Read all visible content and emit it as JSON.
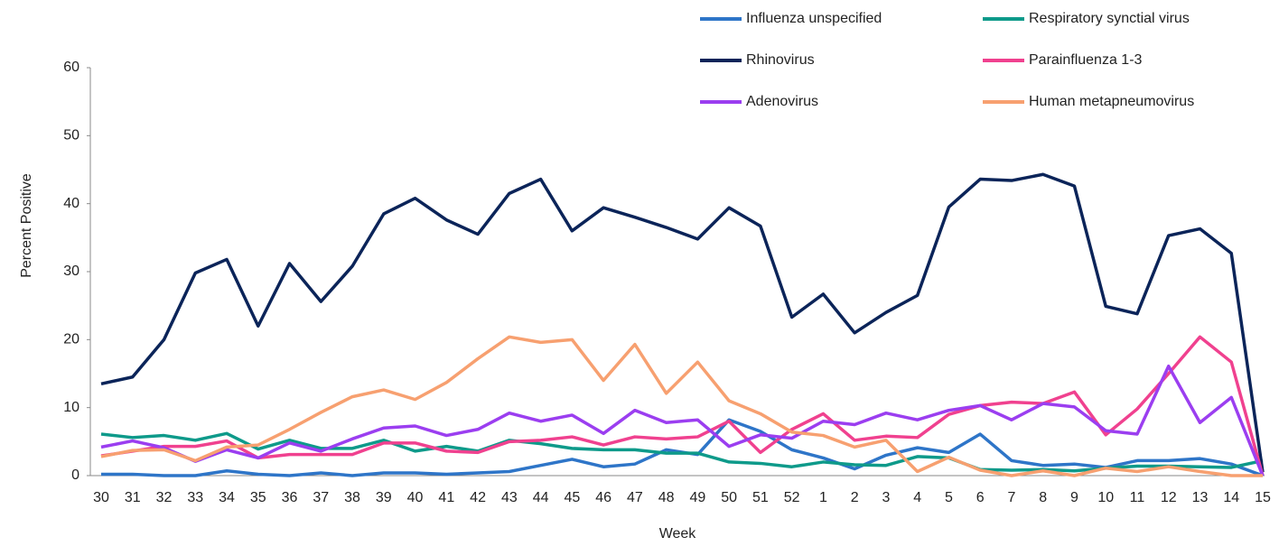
{
  "chart_data": {
    "type": "line",
    "x_label": "Week",
    "y_label": "Percent Positive",
    "categories": [
      "30",
      "31",
      "32",
      "33",
      "34",
      "35",
      "36",
      "37",
      "38",
      "39",
      "40",
      "41",
      "42",
      "43",
      "44",
      "45",
      "46",
      "47",
      "48",
      "49",
      "50",
      "51",
      "52",
      "1",
      "2",
      "3",
      "4",
      "5",
      "6",
      "7",
      "8",
      "9",
      "10",
      "11",
      "12",
      "13",
      "14",
      "15"
    ],
    "ylim": [
      0,
      60
    ],
    "yticks": [
      0,
      10,
      20,
      30,
      40,
      50,
      60
    ],
    "grid": false,
    "series": [
      {
        "name": "Influenza unspecified",
        "color": "#2e75c8",
        "values": [
          0.2,
          0.2,
          0,
          0,
          0.7,
          0.2,
          0,
          0.4,
          0,
          0.4,
          0.4,
          0.2,
          0.4,
          0.6,
          1.5,
          2.4,
          1.3,
          1.7,
          3.8,
          3.1,
          8.2,
          6.5,
          3.8,
          2.6,
          1,
          3,
          4.1,
          3.4,
          6.1,
          2.2,
          1.5,
          1.7,
          1.2,
          2.2,
          2.2,
          2.5,
          1.7,
          0
        ]
      },
      {
        "name": "Respiratory synctial virus",
        "color": "#0e9a8a",
        "values": [
          6.1,
          5.6,
          5.9,
          5.2,
          6.2,
          3.9,
          5.2,
          4,
          4,
          5.2,
          3.6,
          4.3,
          3.6,
          5.2,
          4.7,
          4,
          3.8,
          3.8,
          3.3,
          3.3,
          2,
          1.8,
          1.3,
          2,
          1.6,
          1.5,
          2.8,
          2.6,
          0.9,
          0.8,
          0.9,
          0.7,
          1.1,
          1.4,
          1.4,
          1.3,
          1.2,
          2.2
        ]
      },
      {
        "name": "Rhinovirus",
        "color": "#0b2459",
        "values": [
          13.5,
          14.5,
          20,
          29.8,
          31.8,
          22,
          31.2,
          25.6,
          30.8,
          38.5,
          40.8,
          37.6,
          35.5,
          41.5,
          43.6,
          36,
          39.4,
          38,
          36.5,
          34.8,
          39.4,
          36.7,
          23.3,
          26.7,
          21,
          24,
          26.5,
          39.5,
          43.6,
          43.4,
          44.3,
          42.6,
          24.9,
          23.8,
          35.3,
          36.3,
          32.7,
          0.5
        ]
      },
      {
        "name": "Parainfluenza 1-3",
        "color": "#f0418f",
        "values": [
          2.9,
          3.6,
          4.3,
          4.3,
          5.1,
          2.6,
          3.1,
          3.1,
          3.1,
          4.8,
          4.8,
          3.6,
          3.4,
          5,
          5.2,
          5.7,
          4.5,
          5.7,
          5.4,
          5.7,
          8,
          3.4,
          6.8,
          9.1,
          5.2,
          5.8,
          5.6,
          9,
          10.3,
          10.8,
          10.6,
          12.3,
          6,
          9.8,
          15,
          20.4,
          16.7,
          0
        ]
      },
      {
        "name": "Adenovirus",
        "color": "#9b3ef0",
        "values": [
          4.2,
          5.1,
          4.1,
          2.1,
          3.8,
          2.6,
          4.8,
          3.6,
          5.4,
          7,
          7.3,
          5.9,
          6.8,
          9.2,
          8,
          8.9,
          6.2,
          9.6,
          7.8,
          8.2,
          4.3,
          6,
          5.5,
          8,
          7.5,
          9.2,
          8.2,
          9.6,
          10.3,
          8.2,
          10.6,
          10.1,
          6.6,
          6.1,
          16.1,
          7.8,
          11.5,
          0
        ]
      },
      {
        "name": "Human metapneumovirus",
        "color": "#f7a070",
        "values": [
          2.8,
          3.7,
          3.8,
          2.2,
          4.2,
          4.5,
          6.8,
          9.3,
          11.6,
          12.6,
          11.2,
          13.7,
          17.2,
          20.4,
          19.6,
          20,
          14,
          19.3,
          12.1,
          16.7,
          11,
          9.1,
          6.4,
          5.9,
          4.2,
          5.2,
          0.6,
          2.7,
          0.8,
          0,
          0.7,
          0,
          1.1,
          0.6,
          1.3,
          0.6,
          0,
          0
        ]
      }
    ]
  }
}
